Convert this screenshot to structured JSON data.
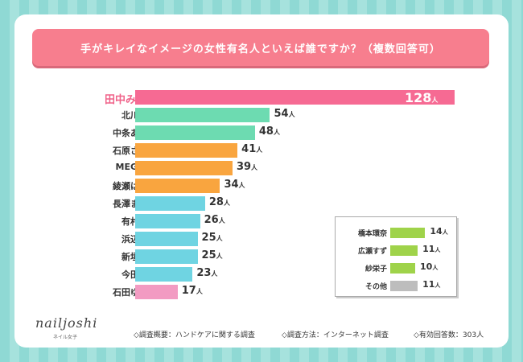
{
  "chart_data": {
    "type": "bar",
    "orientation": "horizontal",
    "title": "手がキレイなイメージの女性有名人といえば誰ですか？（複数回答可）",
    "unit": "人",
    "categories": [
      "田中みな実",
      "北川景子",
      "中条あやみ",
      "石原さとみ",
      "MEGUMI",
      "綾瀬はるか",
      "長澤まさみ",
      "有村架純",
      "浜辺美波",
      "新垣結衣",
      "今田美桜",
      "石田ゆり子"
    ],
    "values": [
      128,
      54,
      48,
      41,
      39,
      34,
      28,
      26,
      25,
      25,
      23,
      17
    ],
    "colors": [
      "#f66a93",
      "#6ddbb1",
      "#6ddbb1",
      "#f9a53f",
      "#f9a53f",
      "#f9a53f",
      "#6fd4e2",
      "#6fd4e2",
      "#6fd4e2",
      "#6fd4e2",
      "#6fd4e2",
      "#f29bc2"
    ],
    "inset": {
      "categories": [
        "橋本環奈",
        "広瀬すず",
        "紗栄子",
        "その他"
      ],
      "values": [
        14,
        11,
        10,
        11
      ],
      "colors": [
        "#9fd34a",
        "#9fd34a",
        "#9fd34a",
        "#bdbdbd"
      ]
    },
    "xlim": [
      0,
      128
    ]
  },
  "footer": {
    "logo": "nailjoshi",
    "logo_sub": "ネイル女子",
    "survey": "◇調査概要：ハンドケアに関する調査",
    "method": "◇調査方法：インターネット調査",
    "respondents": "◇有効回答数：303人"
  }
}
